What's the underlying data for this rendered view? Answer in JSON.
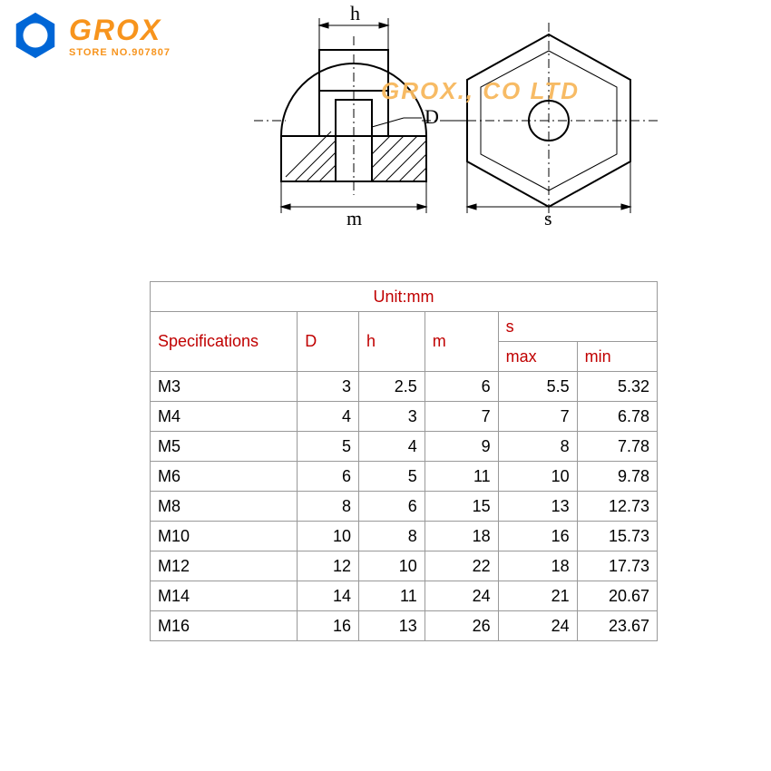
{
  "logo": {
    "brand": "GROX",
    "store": "STORE NO.907807",
    "hex_color": "#0066d6"
  },
  "watermark": "GROX., CO LTD",
  "diagram": {
    "labels": {
      "h": "h",
      "D": "D",
      "m": "m",
      "s": "s"
    },
    "line_color": "#000000",
    "hatch_color": "#000000"
  },
  "table": {
    "unit_label": "Unit:mm",
    "columns": {
      "spec": "Specifications",
      "D": "D",
      "h": "h",
      "m": "m",
      "s": "s",
      "smax": "max",
      "smin": "min"
    },
    "header_color": "#c00000",
    "border_color": "#999999",
    "rows": [
      {
        "spec": "M3",
        "D": "3",
        "h": "2.5",
        "m": "6",
        "smax": "5.5",
        "smin": "5.32"
      },
      {
        "spec": "M4",
        "D": "4",
        "h": "3",
        "m": "7",
        "smax": "7",
        "smin": "6.78"
      },
      {
        "spec": "M5",
        "D": "5",
        "h": "4",
        "m": "9",
        "smax": "8",
        "smin": "7.78"
      },
      {
        "spec": "M6",
        "D": "6",
        "h": "5",
        "m": "11",
        "smax": "10",
        "smin": "9.78"
      },
      {
        "spec": "M8",
        "D": "8",
        "h": "6",
        "m": "15",
        "smax": "13",
        "smin": "12.73"
      },
      {
        "spec": "M10",
        "D": "10",
        "h": "8",
        "m": "18",
        "smax": "16",
        "smin": "15.73"
      },
      {
        "spec": "M12",
        "D": "12",
        "h": "10",
        "m": "22",
        "smax": "18",
        "smin": "17.73"
      },
      {
        "spec": "M14",
        "D": "14",
        "h": "11",
        "m": "24",
        "smax": "21",
        "smin": "20.67"
      },
      {
        "spec": "M16",
        "D": "16",
        "h": "13",
        "m": "26",
        "smax": "24",
        "smin": "23.67"
      }
    ],
    "col_widths": [
      "150px",
      "60px",
      "60px",
      "70px",
      "80px",
      "80px"
    ]
  }
}
